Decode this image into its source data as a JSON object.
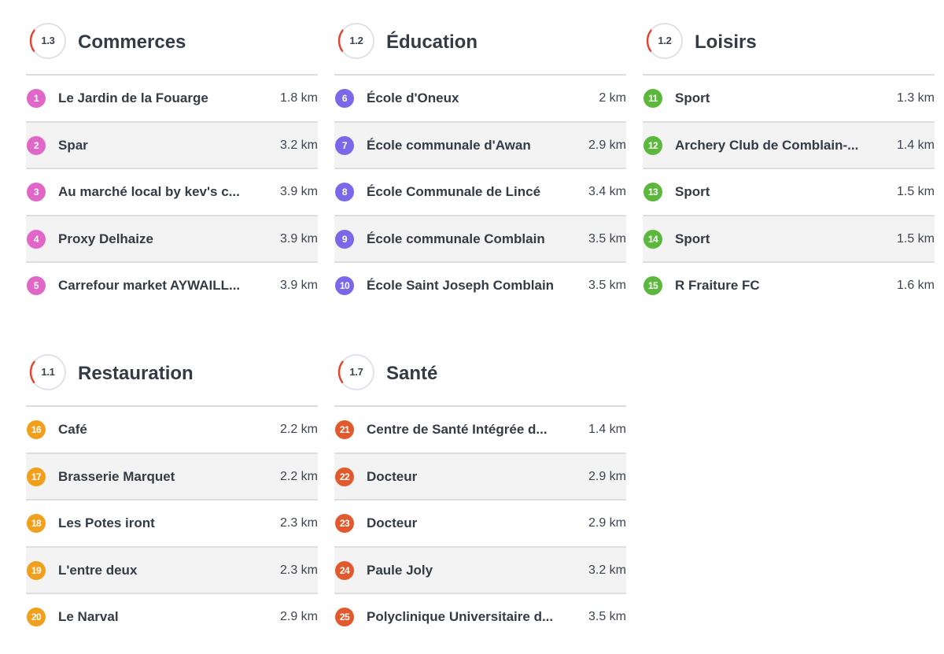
{
  "sections": [
    {
      "id": "commerces",
      "title": "Commerces",
      "score": "1.3",
      "color": "#e067c8",
      "items": [
        {
          "num": "1",
          "name": "Le Jardin de la Fouarge",
          "distance": "1.8 km"
        },
        {
          "num": "2",
          "name": "Spar",
          "distance": "3.2 km"
        },
        {
          "num": "3",
          "name": "Au marché local by kev's c...",
          "distance": "3.9 km"
        },
        {
          "num": "4",
          "name": "Proxy Delhaize",
          "distance": "3.9 km"
        },
        {
          "num": "5",
          "name": "Carrefour market AYWAILL...",
          "distance": "3.9 km"
        }
      ]
    },
    {
      "id": "education",
      "title": "Éducation",
      "score": "1.2",
      "color": "#7b68e8",
      "items": [
        {
          "num": "6",
          "name": "École d'Oneux",
          "distance": "2 km"
        },
        {
          "num": "7",
          "name": "École communale d'Awan",
          "distance": "2.9 km"
        },
        {
          "num": "8",
          "name": "École Communale de Lincé",
          "distance": "3.4 km"
        },
        {
          "num": "9",
          "name": "École communale Comblain",
          "distance": "3.5 km"
        },
        {
          "num": "10",
          "name": "École Saint Joseph Comblain",
          "distance": "3.5 km"
        }
      ]
    },
    {
      "id": "loisirs",
      "title": "Loisirs",
      "score": "1.2",
      "color": "#5cb83c",
      "items": [
        {
          "num": "11",
          "name": "Sport",
          "distance": "1.3 km"
        },
        {
          "num": "12",
          "name": "Archery Club de Comblain-...",
          "distance": "1.4 km"
        },
        {
          "num": "13",
          "name": "Sport",
          "distance": "1.5 km"
        },
        {
          "num": "14",
          "name": "Sport",
          "distance": "1.5 km"
        },
        {
          "num": "15",
          "name": "R Fraiture FC",
          "distance": "1.6 km"
        }
      ]
    },
    {
      "id": "restauration",
      "title": "Restauration",
      "score": "1.1",
      "color": "#f0a01c",
      "items": [
        {
          "num": "16",
          "name": "Café",
          "distance": "2.2 km"
        },
        {
          "num": "17",
          "name": "Brasserie Marquet",
          "distance": "2.2 km"
        },
        {
          "num": "18",
          "name": "Les Potes iront",
          "distance": "2.3 km"
        },
        {
          "num": "19",
          "name": "L'entre deux",
          "distance": "2.3 km"
        },
        {
          "num": "20",
          "name": "Le Narval",
          "distance": "2.9 km"
        }
      ]
    },
    {
      "id": "sante",
      "title": "Santé",
      "score": "1.7",
      "color": "#e05a2e",
      "items": [
        {
          "num": "21",
          "name": "Centre de Santé Intégrée d...",
          "distance": "1.4 km"
        },
        {
          "num": "22",
          "name": "Docteur",
          "distance": "2.9 km"
        },
        {
          "num": "23",
          "name": "Docteur",
          "distance": "2.9 km"
        },
        {
          "num": "24",
          "name": "Paule Joly",
          "distance": "3.2 km"
        },
        {
          "num": "25",
          "name": "Polyclinique Universitaire d...",
          "distance": "3.5 km"
        }
      ]
    }
  ],
  "colors": {
    "score_ring_track": "#dfe3ea",
    "score_ring_accent": "#e0462e",
    "row_alt_background": "#f3f3f3"
  }
}
